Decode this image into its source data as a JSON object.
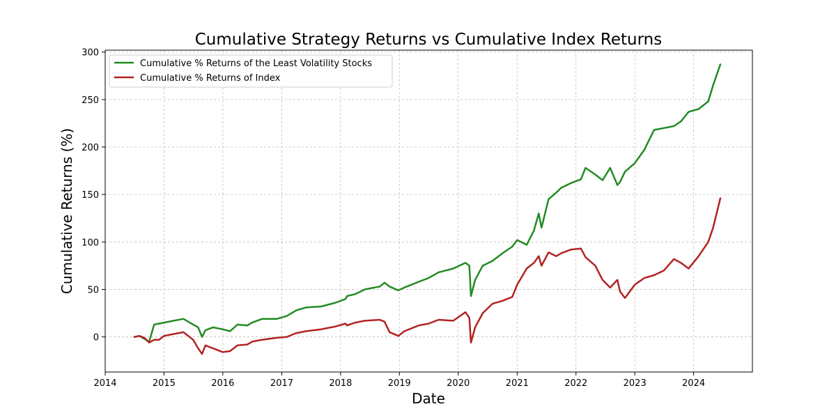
{
  "chart_data": {
    "type": "line",
    "title": "Cumulative Strategy Returns vs Cumulative Index Returns",
    "xlabel": "Date",
    "ylabel": "Cumulative Returns (%)",
    "xlim": [
      "2014-01-01",
      "2024-12-31"
    ],
    "ylim": [
      -37,
      302
    ],
    "x_ticks": [
      "2014",
      "2015",
      "2016",
      "2017",
      "2018",
      "2019",
      "2020",
      "2021",
      "2022",
      "2023",
      "2024"
    ],
    "y_ticks": [
      0,
      50,
      100,
      150,
      200,
      250,
      300
    ],
    "grid": true,
    "legend_position": "top-left",
    "series": [
      {
        "name": "Cumulative % Returns of the Least Volatility Stocks",
        "color": "#228b22",
        "x": [
          "2014-07-01",
          "2014-08-01",
          "2014-09-01",
          "2014-10-01",
          "2014-11-01",
          "2014-12-01",
          "2015-01-01",
          "2015-03-01",
          "2015-05-01",
          "2015-06-01",
          "2015-07-01",
          "2015-08-01",
          "2015-08-25",
          "2015-09-15",
          "2015-11-01",
          "2016-01-01",
          "2016-02-15",
          "2016-04-01",
          "2016-06-01",
          "2016-07-01",
          "2016-09-01",
          "2016-12-01",
          "2017-02-01",
          "2017-04-01",
          "2017-06-01",
          "2017-09-01",
          "2017-12-01",
          "2018-02-01",
          "2018-02-10",
          "2018-04-01",
          "2018-06-01",
          "2018-09-01",
          "2018-10-01",
          "2018-11-01",
          "2018-12-25",
          "2019-02-01",
          "2019-05-01",
          "2019-07-01",
          "2019-09-01",
          "2019-12-01",
          "2020-02-15",
          "2020-03-10",
          "2020-03-20",
          "2020-04-15",
          "2020-06-01",
          "2020-08-01",
          "2020-10-01",
          "2020-12-01",
          "2021-01-01",
          "2021-03-01",
          "2021-04-15",
          "2021-05-15",
          "2021-06-01",
          "2021-07-15",
          "2021-09-01",
          "2021-10-01",
          "2021-12-01",
          "2022-02-01",
          "2022-03-01",
          "2022-05-01",
          "2022-06-15",
          "2022-08-01",
          "2022-09-15",
          "2022-10-01",
          "2022-11-01",
          "2023-01-01",
          "2023-03-01",
          "2023-05-01",
          "2023-07-01",
          "2023-09-01",
          "2023-10-15",
          "2023-12-01",
          "2024-02-01",
          "2024-04-01",
          "2024-05-01",
          "2024-06-15"
        ],
        "y": [
          0,
          1,
          -2,
          -5,
          13,
          14,
          15,
          17,
          19,
          16,
          13,
          10,
          0,
          7,
          10,
          8,
          6,
          13,
          12,
          15,
          19,
          19,
          22,
          28,
          31,
          32,
          36,
          40,
          43,
          45,
          50,
          53,
          57,
          53,
          49,
          52,
          58,
          62,
          68,
          72,
          78,
          75,
          43,
          60,
          75,
          80,
          88,
          95,
          102,
          97,
          112,
          130,
          115,
          145,
          152,
          157,
          162,
          166,
          178,
          171,
          165,
          178,
          160,
          163,
          174,
          183,
          197,
          218,
          220,
          222,
          227,
          237,
          240,
          248,
          265,
          287
        ]
      },
      {
        "name": "Cumulative % Returns of Index",
        "color": "#b22222",
        "x": [
          "2014-07-01",
          "2014-08-01",
          "2014-09-01",
          "2014-10-01",
          "2014-11-01",
          "2014-12-01",
          "2015-01-01",
          "2015-03-01",
          "2015-05-01",
          "2015-06-01",
          "2015-07-01",
          "2015-08-01",
          "2015-08-25",
          "2015-09-15",
          "2015-11-01",
          "2016-01-01",
          "2016-02-15",
          "2016-04-01",
          "2016-06-01",
          "2016-07-01",
          "2016-09-01",
          "2016-12-01",
          "2017-02-01",
          "2017-04-01",
          "2017-06-01",
          "2017-09-01",
          "2017-12-01",
          "2018-02-01",
          "2018-02-10",
          "2018-04-01",
          "2018-06-01",
          "2018-09-01",
          "2018-10-01",
          "2018-11-01",
          "2018-12-25",
          "2019-02-01",
          "2019-05-01",
          "2019-07-01",
          "2019-09-01",
          "2019-12-01",
          "2020-02-15",
          "2020-03-10",
          "2020-03-20",
          "2020-04-15",
          "2020-06-01",
          "2020-08-01",
          "2020-10-01",
          "2020-12-01",
          "2021-01-01",
          "2021-03-01",
          "2021-04-15",
          "2021-05-15",
          "2021-06-01",
          "2021-07-15",
          "2021-09-01",
          "2021-10-01",
          "2021-12-01",
          "2022-02-01",
          "2022-03-01",
          "2022-05-01",
          "2022-06-15",
          "2022-08-01",
          "2022-09-15",
          "2022-10-01",
          "2022-11-01",
          "2023-01-01",
          "2023-03-01",
          "2023-05-01",
          "2023-07-01",
          "2023-09-01",
          "2023-10-15",
          "2023-12-01",
          "2024-02-01",
          "2024-04-01",
          "2024-05-01",
          "2024-06-15"
        ],
        "y": [
          0,
          1,
          -1,
          -6,
          -3,
          -3,
          1,
          3,
          5,
          1,
          -3,
          -12,
          -18,
          -9,
          -12,
          -16,
          -15,
          -9,
          -8,
          -5,
          -3,
          -1,
          0,
          4,
          6,
          8,
          11,
          14,
          12,
          15,
          17,
          18,
          16,
          5,
          1,
          6,
          12,
          14,
          18,
          17,
          26,
          20,
          -6,
          10,
          25,
          35,
          38,
          42,
          55,
          72,
          78,
          85,
          75,
          89,
          85,
          88,
          92,
          93,
          84,
          75,
          60,
          52,
          60,
          48,
          41,
          55,
          62,
          65,
          70,
          82,
          78,
          72,
          85,
          100,
          115,
          146
        ]
      }
    ]
  }
}
